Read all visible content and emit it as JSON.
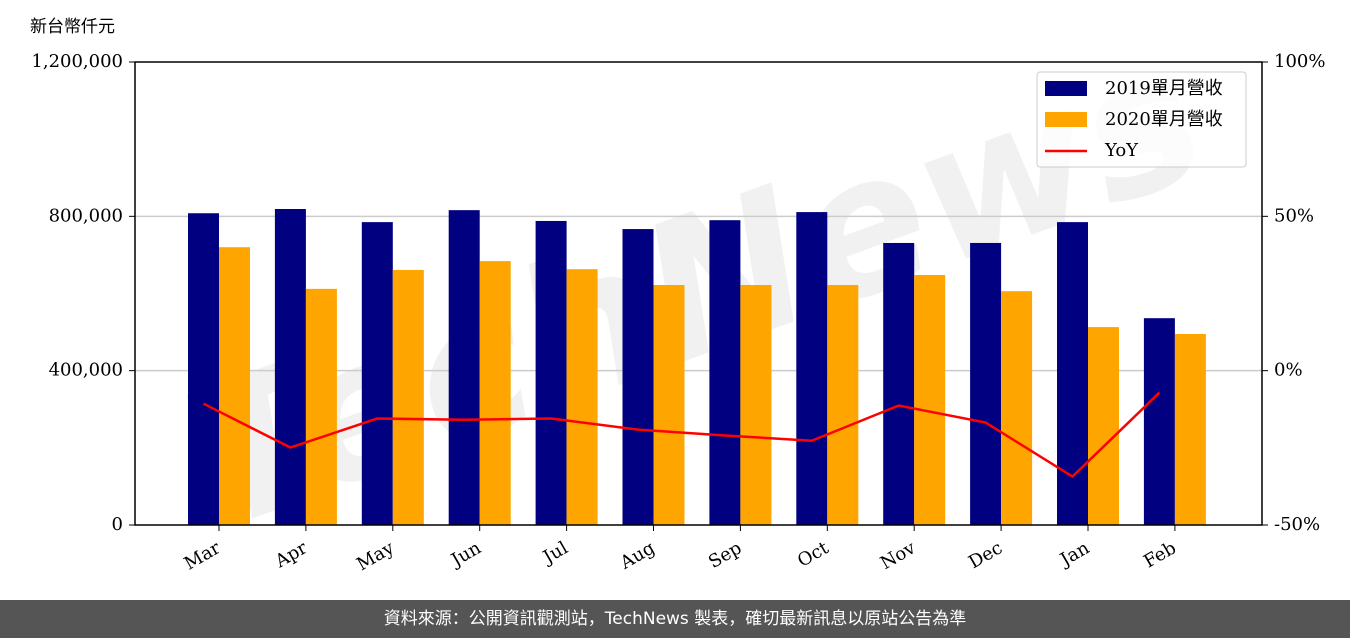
{
  "chart_data": {
    "type": "bar_line",
    "y_label": "新台幣仟元",
    "watermark": "TechNews",
    "source": "資料來源：公開資訊觀測站，TechNews 製表，確切最新訊息以原站公告為準",
    "categories": [
      "Mar",
      "Apr",
      "May",
      "Jun",
      "Jul",
      "Aug",
      "Sep",
      "Oct",
      "Nov",
      "Dec",
      "Jan",
      "Feb"
    ],
    "series": [
      {
        "name": "2019單月營收",
        "color": "#000080",
        "values": [
          808000,
          819000,
          785000,
          816000,
          788000,
          767000,
          790000,
          811000,
          731000,
          731000,
          785000,
          536000
        ]
      },
      {
        "name": "2020單月營收",
        "color": "#ffa500",
        "values": [
          720000,
          612000,
          661000,
          684000,
          663000,
          622000,
          622000,
          622000,
          648000,
          606000,
          513000,
          495000
        ]
      },
      {
        "name": "YoY",
        "color": "#ff0000",
        "axis": "y2",
        "type": "line",
        "values": [
          -10.7,
          -24.9,
          -15.5,
          -15.9,
          -15.5,
          -19.1,
          -21.0,
          -22.7,
          -11.3,
          -16.8,
          -34.3,
          -7.1
        ]
      }
    ],
    "ylim": [
      0,
      1200000
    ],
    "yticks": [
      0,
      {
        "value": 400000,
        "label": "400,000"
      },
      {
        "value": 800000,
        "label": "800,000"
      },
      {
        "value": 1200000,
        "label": "1,200,000"
      }
    ],
    "y2lim": [
      -50,
      100
    ],
    "y2ticks": [
      {
        "value": -50,
        "label": "-50%"
      },
      {
        "value": 0,
        "label": "0%"
      },
      {
        "value": 50,
        "label": "50%"
      },
      {
        "value": 100,
        "label": "100%"
      }
    ],
    "grid": true,
    "legend": "upper right"
  }
}
